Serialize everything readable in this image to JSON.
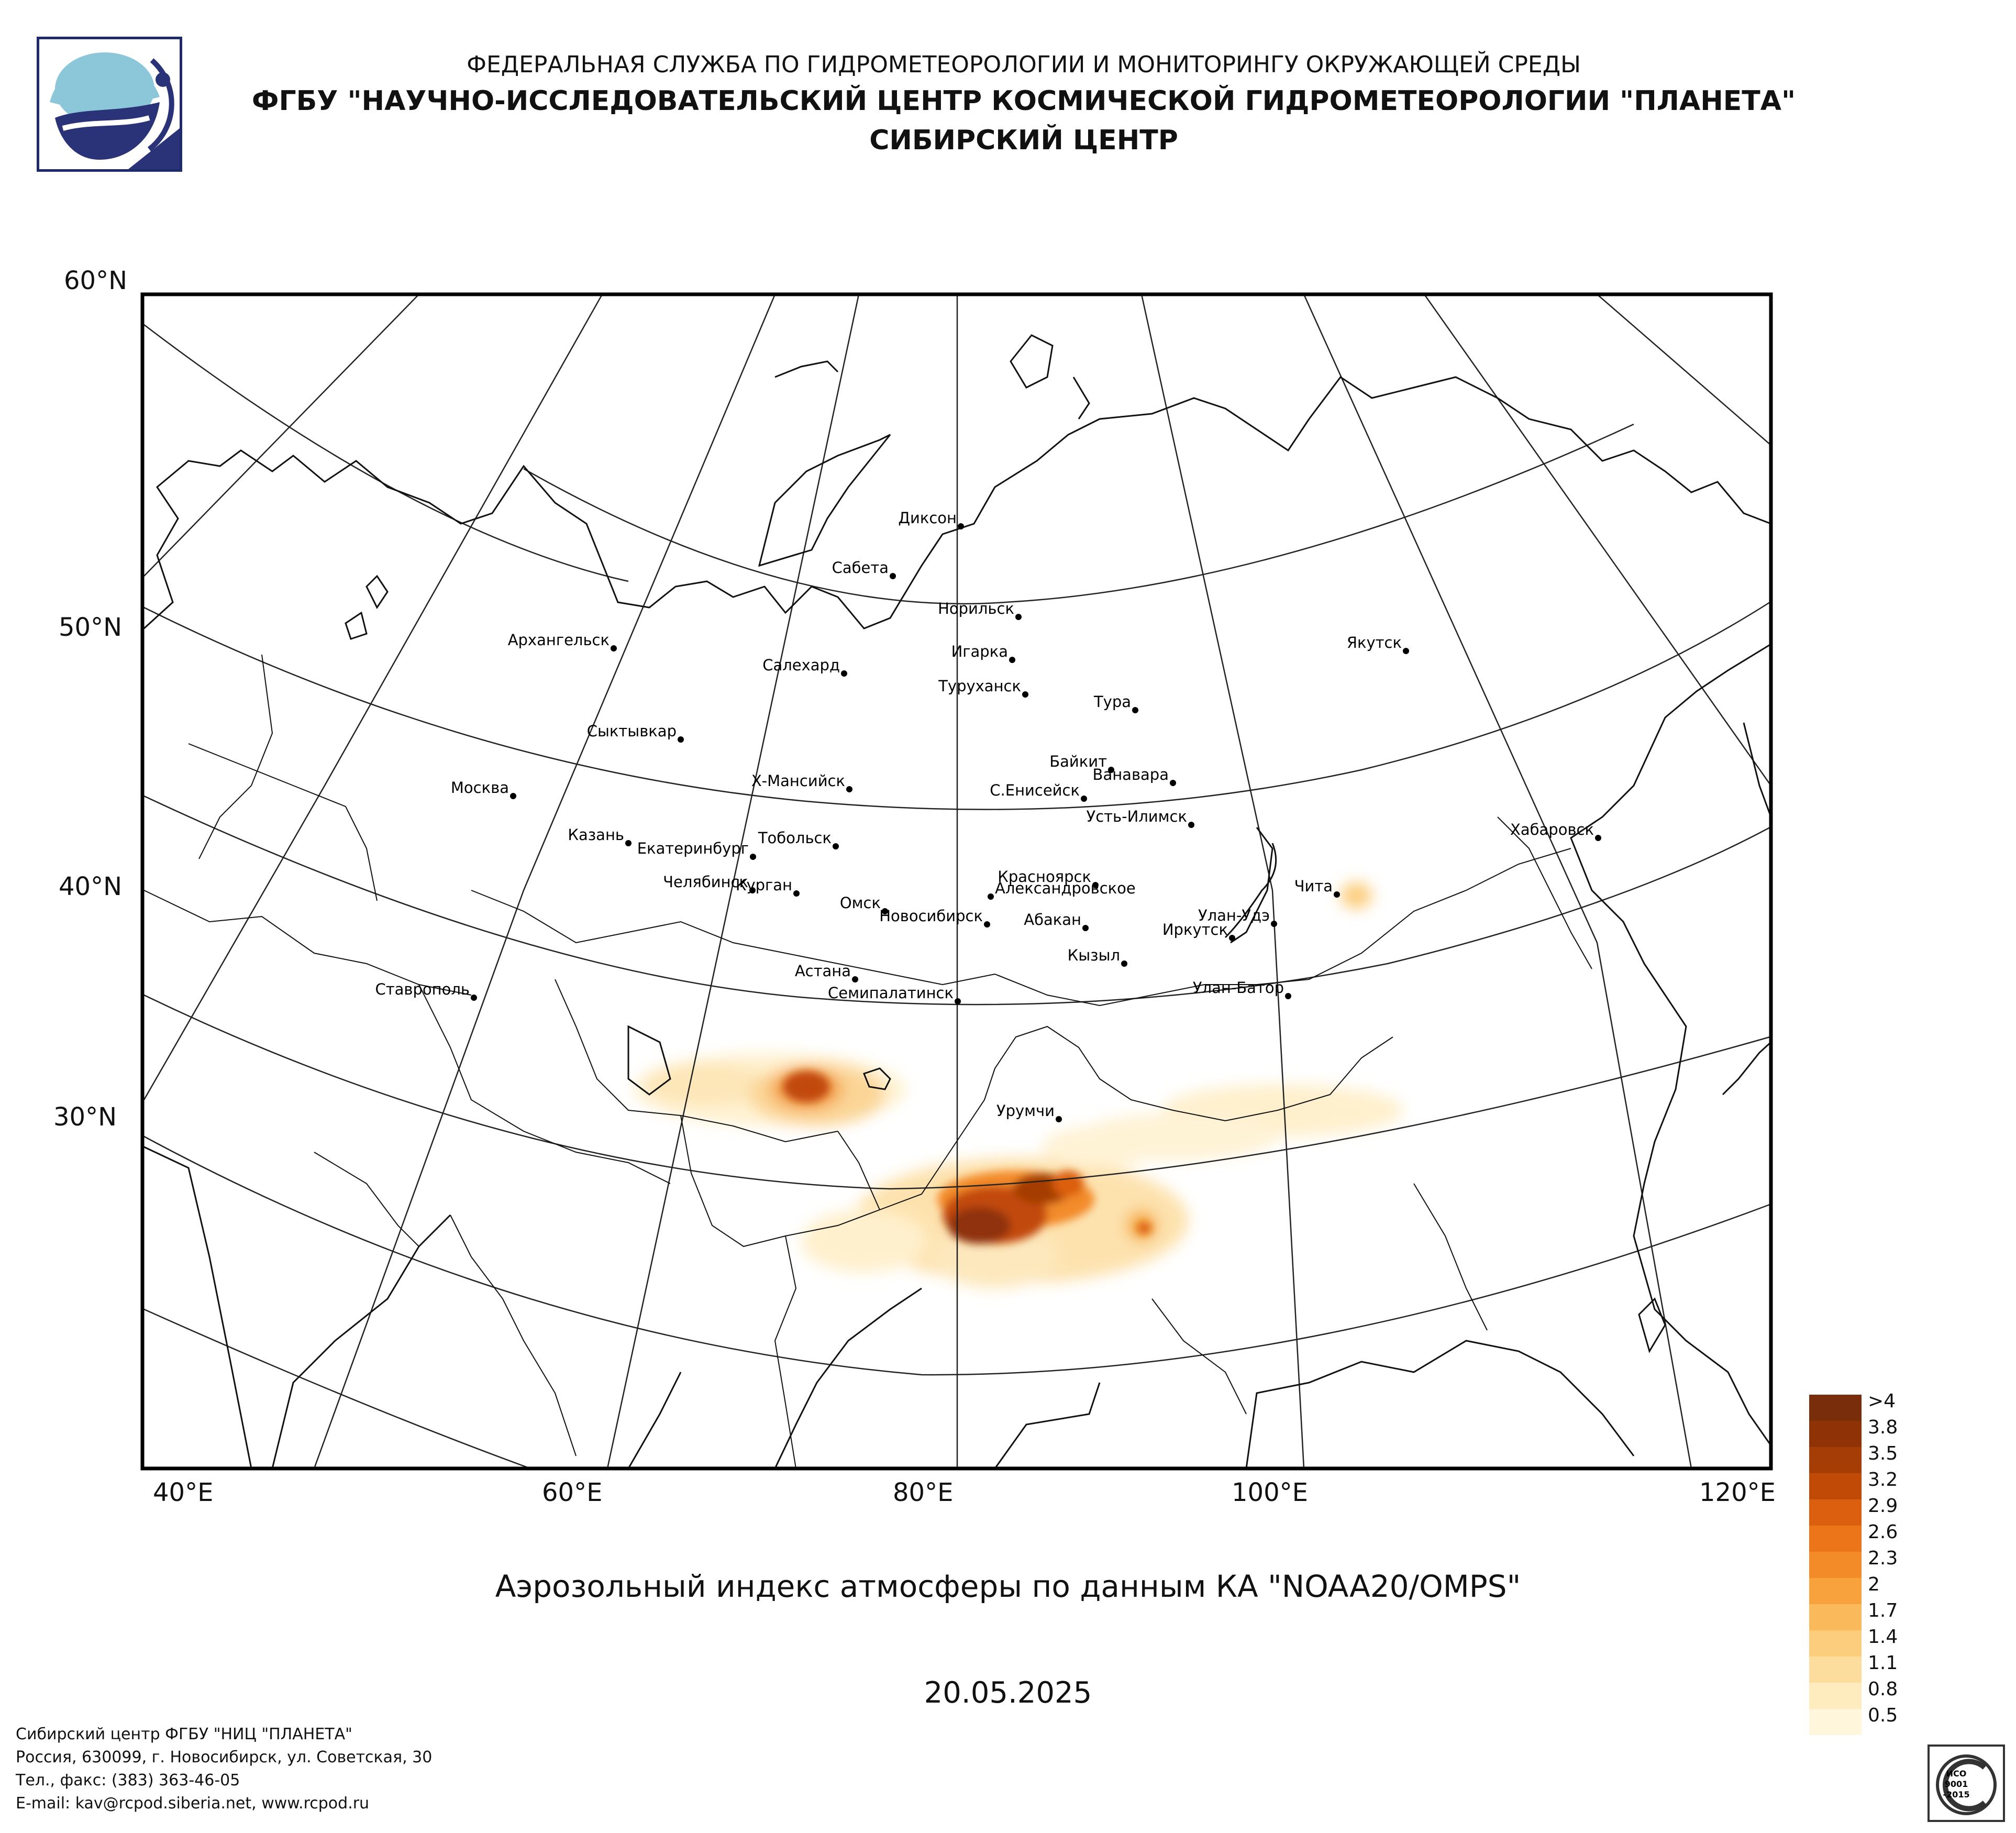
{
  "header": {
    "line1": "ФЕДЕРАЛЬНАЯ СЛУЖБА ПО ГИДРОМЕТЕОРОЛОГИИ И МОНИТОРИНГУ ОКРУЖАЮЩЕЙ СРЕДЫ",
    "line2": "ФГБУ \"НАУЧНО-ИССЛЕДОВАТЕЛЬСКИЙ ЦЕНТР КОСМИЧЕСКОЙ ГИДРОМЕТЕОРОЛОГИИ \"ПЛАНЕТА\"",
    "line3": "СИБИРСКИЙ ЦЕНТР"
  },
  "map": {
    "lat_labels": [
      "60°N",
      "50°N",
      "40°N",
      "30°N"
    ],
    "lon_labels": [
      "40°E",
      "60°E",
      "80°E",
      "100°E",
      "120°E"
    ],
    "cities": [
      {
        "name": "Диксон"
      },
      {
        "name": "Сабета"
      },
      {
        "name": "Норильск"
      },
      {
        "name": "Игарка"
      },
      {
        "name": "Архангельск"
      },
      {
        "name": "Салехард"
      },
      {
        "name": "Туруханск"
      },
      {
        "name": "Тура"
      },
      {
        "name": "Якутск"
      },
      {
        "name": "Сыктывкар"
      },
      {
        "name": "Байкит"
      },
      {
        "name": "Ванавара"
      },
      {
        "name": "Х-Мансийск"
      },
      {
        "name": "С.Енисейск"
      },
      {
        "name": "Москва"
      },
      {
        "name": "Усть-Илимск"
      },
      {
        "name": "Казань"
      },
      {
        "name": "Тобольск"
      },
      {
        "name": "Екатеринбург"
      },
      {
        "name": "Хабаровск"
      },
      {
        "name": "Красноярск"
      },
      {
        "name": "Челябинск"
      },
      {
        "name": "Александровское"
      },
      {
        "name": "Чита"
      },
      {
        "name": "Курган"
      },
      {
        "name": "Омск"
      },
      {
        "name": "Новосибирск"
      },
      {
        "name": "Абакан"
      },
      {
        "name": "Улан-Удэ"
      },
      {
        "name": "Иркутск"
      },
      {
        "name": "Кызыл"
      },
      {
        "name": "Астана"
      },
      {
        "name": "Ставрополь"
      },
      {
        "name": "Семипалатинск"
      },
      {
        "name": "Улан-Батор"
      },
      {
        "name": "Урумчи"
      }
    ]
  },
  "caption": "Аэрозольный индекс атмосферы по данным КА \"NOAA20/OMPS\"",
  "date": "20.05.2025",
  "legend": {
    "items": [
      {
        "label": ">4",
        "color": "#7a2d0a"
      },
      {
        "label": "3.8",
        "color": "#8f3307"
      },
      {
        "label": "3.5",
        "color": "#a53d06"
      },
      {
        "label": "3.2",
        "color": "#c24a07"
      },
      {
        "label": "2.9",
        "color": "#dc5e0f"
      },
      {
        "label": "2.6",
        "color": "#ec7419"
      },
      {
        "label": "2.3",
        "color": "#f38b29"
      },
      {
        "label": "2",
        "color": "#f7a23c"
      },
      {
        "label": "1.7",
        "color": "#fab95a"
      },
      {
        "label": "1.4",
        "color": "#fccd7c"
      },
      {
        "label": "1.1",
        "color": "#fddd9d"
      },
      {
        "label": "0.8",
        "color": "#feebbe"
      },
      {
        "label": "0.5",
        "color": "#fff6dc"
      }
    ]
  },
  "footer": {
    "line1": "Сибирский центр ФГБУ \"НИЦ \"ПЛАНЕТА\"",
    "line2": "Россия, 630099, г. Новосибирск, ул. Советская, 30",
    "line3": "Тел., факс: (383) 363-46-05",
    "line4": "E-mail: kav@rcpod.siberia.net, www.rcpod.ru"
  },
  "iso_badge": {
    "line1": "ИСО",
    "line2": "9001",
    "line3": "-2015"
  }
}
